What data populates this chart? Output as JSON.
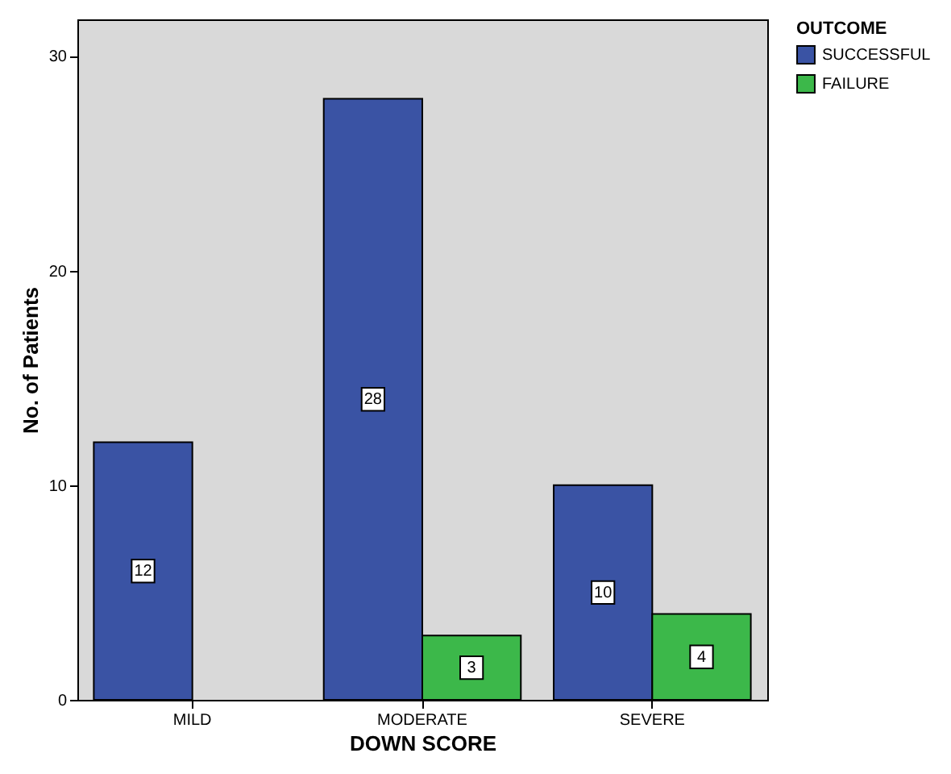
{
  "chart_data": {
    "type": "bar",
    "xlabel": "DOWN SCORE",
    "ylabel": "No. of Patients",
    "legend_title": "OUTCOME",
    "categories": [
      "MILD",
      "MODERATE",
      "SEVERE"
    ],
    "series": [
      {
        "name": "SUCCESSFUL",
        "color": "#3a53a4",
        "values": [
          12,
          28,
          10
        ]
      },
      {
        "name": "FAILURE",
        "color": "#3cb84a",
        "values": [
          null,
          3,
          4
        ]
      }
    ],
    "ylim": [
      0,
      31.7
    ],
    "yticks": [
      0,
      10,
      20,
      30
    ],
    "grid": false,
    "legend": "top right",
    "data_labels": true
  }
}
